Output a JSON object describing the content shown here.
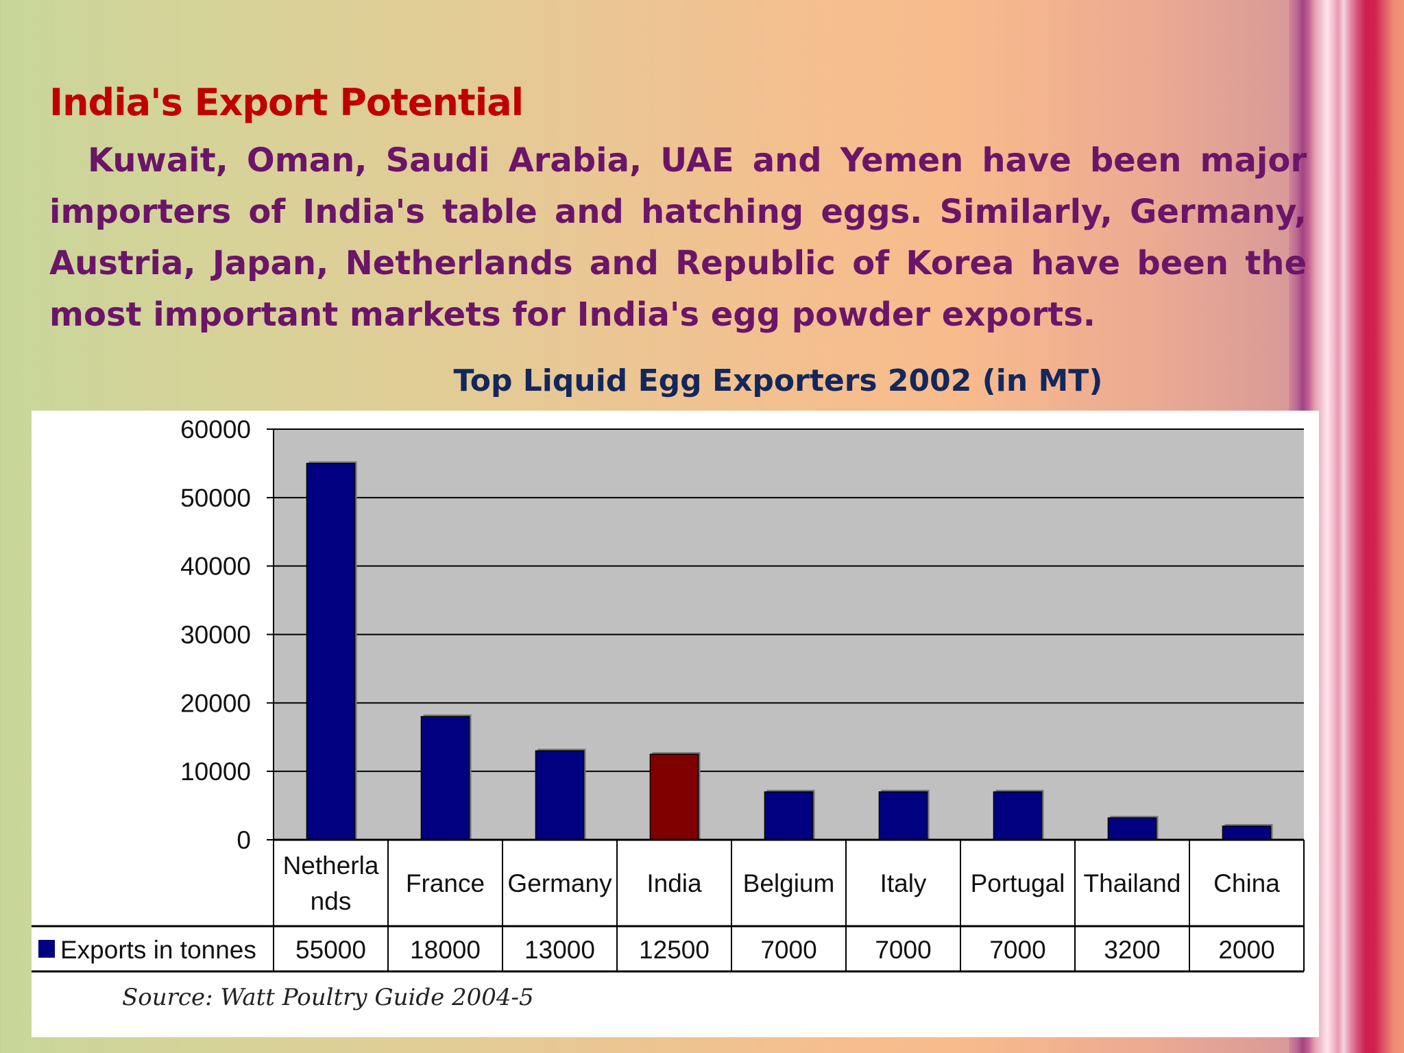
{
  "slide": {
    "title": "India's Export Potential",
    "body": "Kuwait, Oman, Saudi Arabia, UAE and Yemen have been major importers of India's table and hatching eggs. Similarly, Germany, Austria, Japan, Netherlands and Republic of Korea have been the most important markets for India's egg powder exports."
  },
  "chart_data": {
    "type": "bar",
    "title": "Top Liquid Egg Exporters 2002 (in MT)",
    "categories": [
      "Netherlands",
      "France",
      "Germany",
      "India",
      "Belgium",
      "Italy",
      "Portugal",
      "Thailand",
      "China"
    ],
    "category_labels": [
      [
        "Netherla",
        "nds"
      ],
      [
        "France"
      ],
      [
        "Germany"
      ],
      [
        "India"
      ],
      [
        "Belgium"
      ],
      [
        "Italy"
      ],
      [
        "Portugal"
      ],
      [
        "Thailand"
      ],
      [
        "China"
      ]
    ],
    "series": [
      {
        "name": "Exports in tonnes",
        "values": [
          55000,
          18000,
          13000,
          12500,
          7000,
          7000,
          7000,
          3200,
          2000
        ]
      }
    ],
    "ylim": [
      0,
      60000
    ],
    "yticks": [
      0,
      10000,
      20000,
      30000,
      40000,
      50000,
      60000
    ],
    "grid": true,
    "legend": "data-table",
    "colors": {
      "bar": "#000080",
      "highlight": "#800000",
      "plot_background": "#c0c0c0"
    },
    "highlight_category": "India",
    "source": "Source: Watt Poultry Guide 2004-5"
  }
}
